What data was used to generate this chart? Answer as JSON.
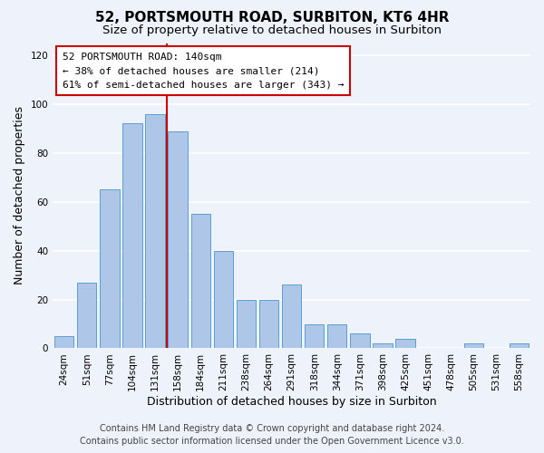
{
  "title": "52, PORTSMOUTH ROAD, SURBITON, KT6 4HR",
  "subtitle": "Size of property relative to detached houses in Surbiton",
  "xlabel": "Distribution of detached houses by size in Surbiton",
  "ylabel": "Number of detached properties",
  "bar_labels": [
    "24sqm",
    "51sqm",
    "77sqm",
    "104sqm",
    "131sqm",
    "158sqm",
    "184sqm",
    "211sqm",
    "238sqm",
    "264sqm",
    "291sqm",
    "318sqm",
    "344sqm",
    "371sqm",
    "398sqm",
    "425sqm",
    "451sqm",
    "478sqm",
    "505sqm",
    "531sqm",
    "558sqm"
  ],
  "bar_values": [
    5,
    27,
    65,
    92,
    96,
    89,
    55,
    40,
    20,
    20,
    26,
    10,
    10,
    6,
    2,
    4,
    0,
    0,
    2,
    0,
    2
  ],
  "bar_color": "#aec6e8",
  "bar_edge_color": "#5a9fd4",
  "highlight_bar_index": 4,
  "highlight_line_color": "#cc0000",
  "ylim": [
    0,
    125
  ],
  "yticks": [
    0,
    20,
    40,
    60,
    80,
    100,
    120
  ],
  "annotation_title": "52 PORTSMOUTH ROAD: 140sqm",
  "annotation_line1": "← 38% of detached houses are smaller (214)",
  "annotation_line2": "61% of semi-detached houses are larger (343) →",
  "annotation_box_color": "#ffffff",
  "annotation_box_edge_color": "#cc0000",
  "footer_line1": "Contains HM Land Registry data © Crown copyright and database right 2024.",
  "footer_line2": "Contains public sector information licensed under the Open Government Licence v3.0.",
  "background_color": "#eef2fa",
  "grid_color": "#ffffff",
  "title_fontsize": 11,
  "subtitle_fontsize": 9.5,
  "axis_label_fontsize": 9,
  "tick_fontsize": 7.5,
  "annotation_fontsize": 8,
  "footer_fontsize": 7
}
